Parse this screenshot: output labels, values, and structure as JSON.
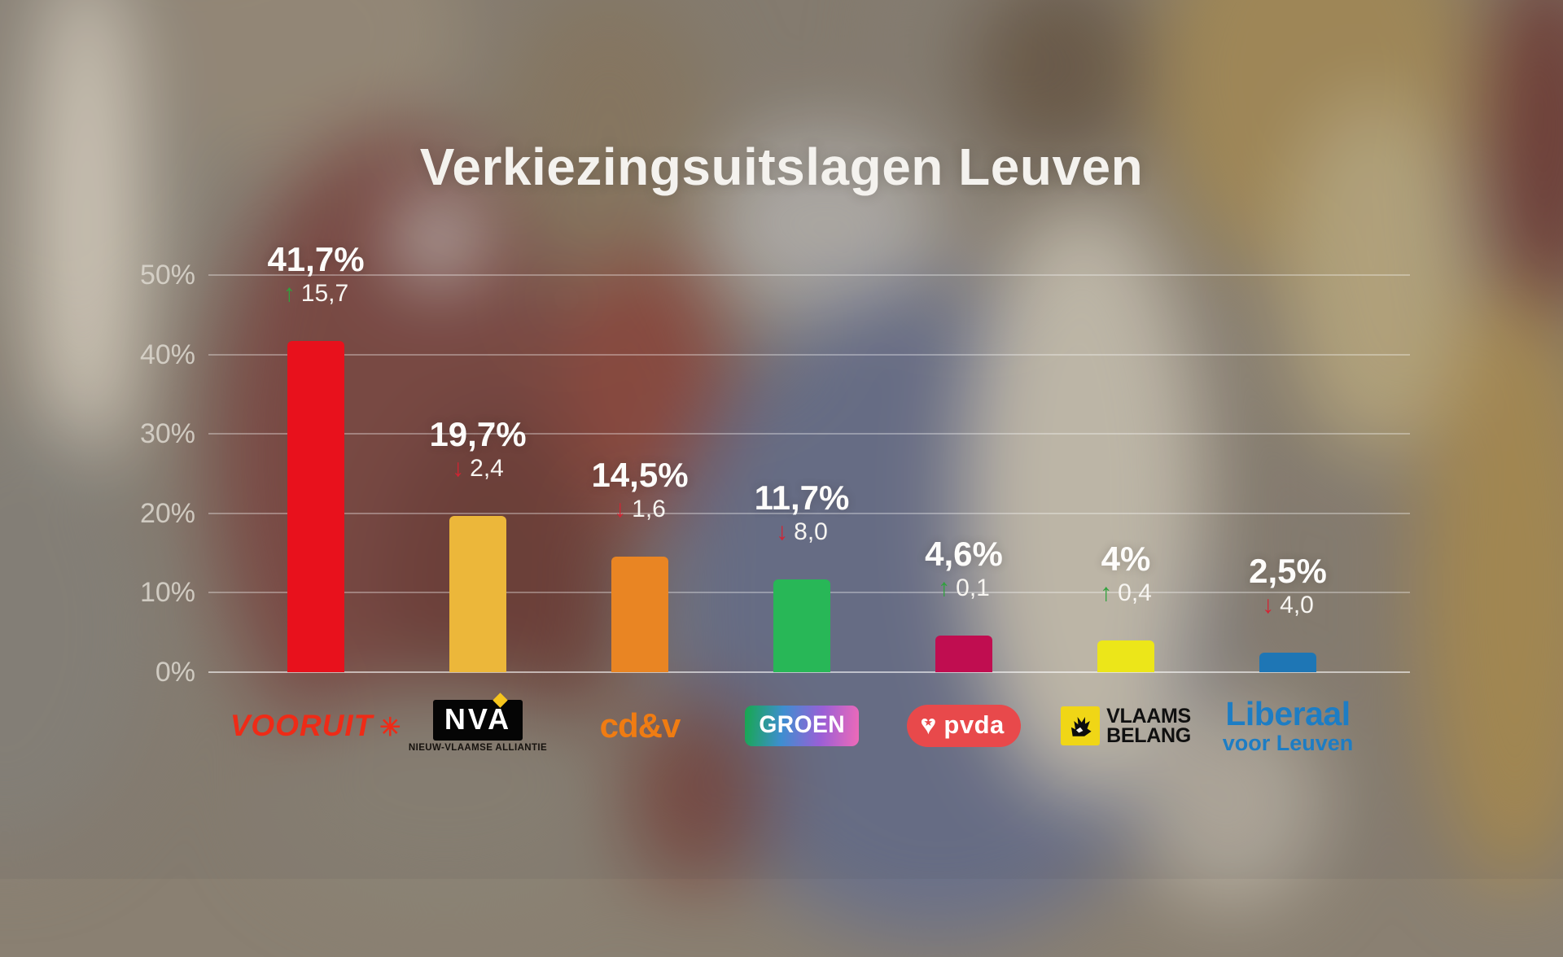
{
  "title": "Verkiezingsuitslagen Leuven",
  "chart_data": {
    "type": "bar",
    "title": "Verkiezingsuitslagen Leuven",
    "categories": [
      "Vooruit",
      "N-VA",
      "cd&v",
      "Groen",
      "PVDA",
      "Vlaams Belang",
      "Liberaal voor Leuven"
    ],
    "values": [
      41.7,
      19.7,
      14.5,
      11.7,
      4.6,
      4.0,
      2.5
    ],
    "value_labels": [
      "41,7%",
      "19,7%",
      "14,5%",
      "11,7%",
      "4,6%",
      "4%",
      "2,5%"
    ],
    "changes": [
      {
        "direction": "up",
        "label": "15,7"
      },
      {
        "direction": "down",
        "label": "2,4"
      },
      {
        "direction": "down",
        "label": "1,6"
      },
      {
        "direction": "down",
        "label": "8,0"
      },
      {
        "direction": "up",
        "label": "0,1"
      },
      {
        "direction": "up",
        "label": "0,4"
      },
      {
        "direction": "down",
        "label": "4,0"
      }
    ],
    "bar_colors": [
      "#e8111c",
      "#ecb73a",
      "#e98523",
      "#28b757",
      "#c00d50",
      "#ece619",
      "#1e76b5"
    ],
    "ylim": [
      0,
      50
    ],
    "yticks": [
      {
        "value": 0,
        "label": "0%"
      },
      {
        "value": 10,
        "label": "10%"
      },
      {
        "value": 20,
        "label": "20%"
      },
      {
        "value": 30,
        "label": "30%"
      },
      {
        "value": 40,
        "label": "40%"
      },
      {
        "value": 50,
        "label": "50%"
      }
    ],
    "grid": true,
    "legend_position": "none"
  },
  "arrow_colors": {
    "up": "#2fa23c",
    "down": "#d42333"
  },
  "logos": [
    {
      "type": "vooruit",
      "text": "VOORUIT",
      "star": "✳",
      "color": "#ee2b17"
    },
    {
      "type": "nva",
      "box_text": "NVA",
      "caption": "NIEUW-VLAAMSE ALLIANTIE",
      "bg": "#050505",
      "fg": "#ffffff",
      "diamond": "#f6c51d"
    },
    {
      "type": "cdv",
      "text": "cd&v",
      "color": "#f07c12"
    },
    {
      "type": "groen",
      "text": "GROEN",
      "fg": "#ffffff",
      "gradient": [
        "#17a84e",
        "#3e8ed0",
        "#9a5fd6",
        "#ef6ab8"
      ]
    },
    {
      "type": "pvda",
      "text": "pvda",
      "bg": "#e8494b",
      "fg": "#ffffff",
      "heart": "♥",
      "star": "★"
    },
    {
      "type": "vb",
      "line1": "VLAAMS",
      "line2": "BELANG",
      "square_color": "#f0d616",
      "text_color": "#101010"
    },
    {
      "type": "liberaal",
      "line1": "Liberaal",
      "line2": "voor Leuven",
      "color": "#1d7dc4"
    }
  ]
}
